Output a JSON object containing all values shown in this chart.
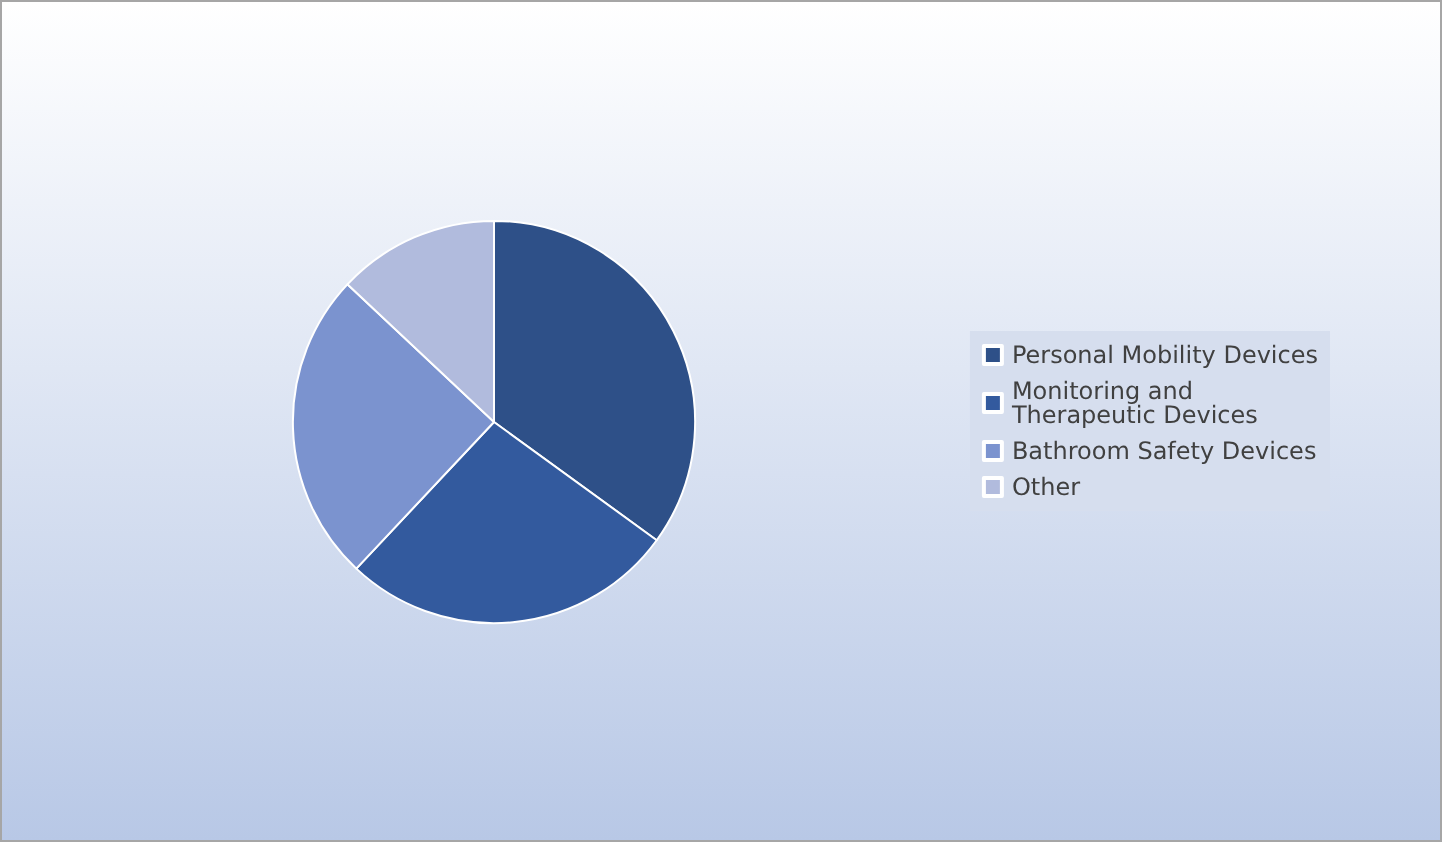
{
  "chart_data": {
    "type": "pie",
    "categories": [
      "Personal Mobility Devices",
      "Monitoring and Therapeutic Devices",
      "Bathroom Safety Devices",
      "Other"
    ],
    "values": [
      35,
      27,
      25,
      13
    ],
    "colors": [
      "#2e5088",
      "#335a9e",
      "#7b93cf",
      "#b1bbdd"
    ],
    "legend": "right"
  }
}
